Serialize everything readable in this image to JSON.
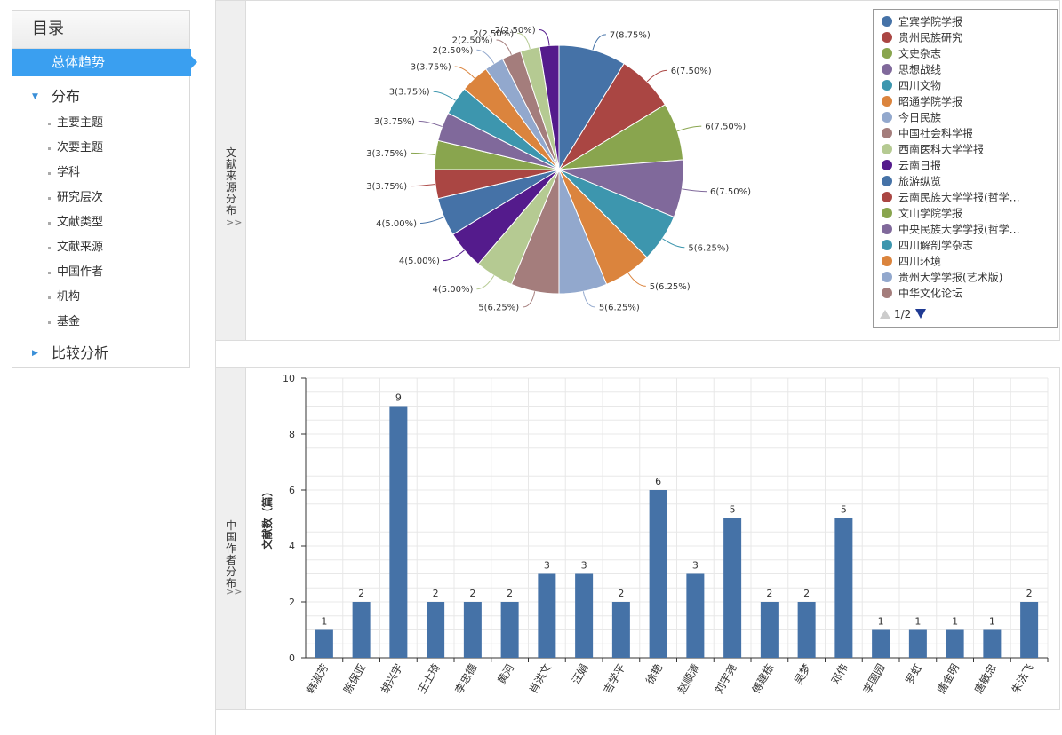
{
  "sidebar": {
    "title": "目录",
    "active_item": "总体趋势",
    "group_distribution": "分布",
    "items": [
      "主要主题",
      "次要主题",
      "学科",
      "研究层次",
      "文献类型",
      "文献来源",
      "中国作者",
      "机构",
      "基金"
    ],
    "group_compare": "比较分析"
  },
  "panels": {
    "source_tab": "文献来源分布",
    "author_tab": "中国作者分布",
    "chevron": ">>"
  },
  "legend": {
    "pager": "1/2"
  },
  "chart_data": [
    {
      "type": "pie",
      "title": "",
      "legend_position": "right",
      "slices": [
        {
          "name": "宜宾学院学报",
          "value": 7,
          "label": "7(8.75%)",
          "color": "#4572a7"
        },
        {
          "name": "贵州民族研究",
          "value": 6,
          "label": "6(7.50%)",
          "color": "#aa4643"
        },
        {
          "name": "文史杂志",
          "value": 6,
          "label": "6(7.50%)",
          "color": "#89a54e"
        },
        {
          "name": "思想战线",
          "value": 6,
          "label": "6(7.50%)",
          "color": "#80699b"
        },
        {
          "name": "四川文物",
          "value": 5,
          "label": "5(6.25%)",
          "color": "#3d96ae"
        },
        {
          "name": "昭通学院学报",
          "value": 5,
          "label": "5(6.25%)",
          "color": "#db843d"
        },
        {
          "name": "今日民族",
          "value": 5,
          "label": "5(6.25%)",
          "color": "#92a8cd"
        },
        {
          "name": "中国社会科学报",
          "value": 5,
          "label": "5(6.25%)",
          "color": "#a47d7c"
        },
        {
          "name": "西南医科大学学报",
          "value": 4,
          "label": "4(5.00%)",
          "color": "#b5ca92"
        },
        {
          "name": "云南日报",
          "value": 4,
          "label": "4(5.00%)",
          "color": "#541b8c"
        },
        {
          "name": "旅游纵览",
          "value": 4,
          "label": "4(5.00%)",
          "color": "#4572a7"
        },
        {
          "name": "云南民族大学学报(哲学…",
          "value": 3,
          "label": "3(3.75%)",
          "color": "#aa4643"
        },
        {
          "name": "文山学院学报",
          "value": 3,
          "label": "3(3.75%)",
          "color": "#89a54e"
        },
        {
          "name": "中央民族大学学报(哲学…",
          "value": 3,
          "label": "3(3.75%)",
          "color": "#80699b"
        },
        {
          "name": "四川解剖学杂志",
          "value": 3,
          "label": "3(3.75%)",
          "color": "#3d96ae"
        },
        {
          "name": "四川环境",
          "value": 3,
          "label": "3(3.75%)",
          "color": "#db843d"
        },
        {
          "name": "贵州大学学报(艺术版)",
          "value": 2,
          "label": "2(2.50%)",
          "color": "#92a8cd"
        },
        {
          "name": "中华文化论坛",
          "value": 2,
          "label": "2(2.50%)",
          "color": "#a47d7c"
        },
        {
          "name": "",
          "value": 2,
          "label": "2(2.50%)",
          "color": "#b5ca92"
        },
        {
          "name": "",
          "value": 2,
          "label": "2(2.50%)",
          "color": "#541b8c"
        }
      ]
    },
    {
      "type": "bar",
      "title": "",
      "xlabel": "",
      "ylabel": "文献数（篇）",
      "ylim": [
        0,
        10
      ],
      "yticks": [
        0,
        2,
        4,
        6,
        8,
        10
      ],
      "grid": true,
      "bar_color": "#4572a7",
      "categories": [
        "韩淑芳",
        "陈保亚",
        "胡兴宇",
        "王士琦",
        "李忠德",
        "黄河",
        "肖洪文",
        "汪娟",
        "吉学平",
        "徐艳",
        "赵顺清",
        "刘宇尧",
        "傅建栋",
        "吴梦",
        "邓伟",
        "李国园",
        "罗虹",
        "唐金明",
        "唐敏忠",
        "朱法飞"
      ],
      "values": [
        1,
        2,
        9,
        2,
        2,
        2,
        3,
        3,
        2,
        6,
        3,
        5,
        2,
        2,
        5,
        1,
        1,
        1,
        1,
        2
      ]
    }
  ]
}
